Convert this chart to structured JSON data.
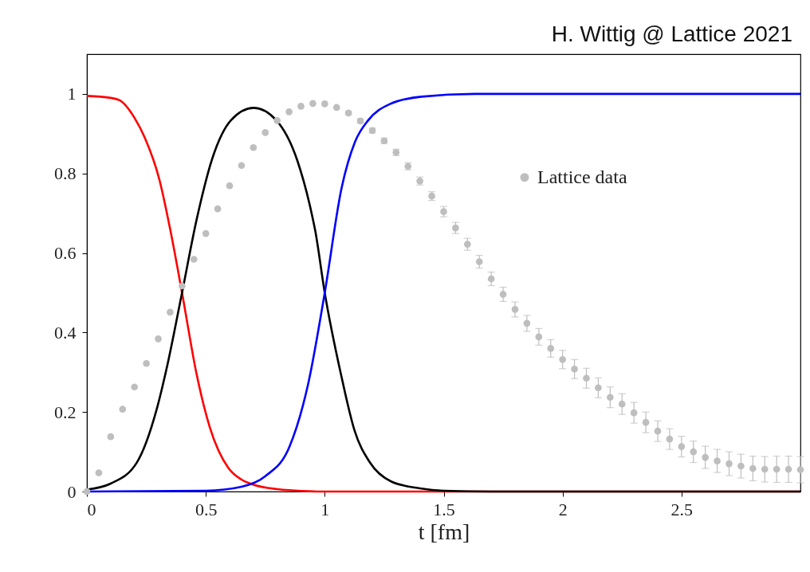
{
  "chart_data": {
    "type": "line",
    "xlabel": "t [fm]",
    "annotations": [
      "H. Wittig @ Lattice 2021"
    ],
    "xlim": [
      0,
      3
    ],
    "xticks": [
      0,
      0.5,
      1,
      1.5,
      2,
      2.5
    ],
    "ylim": [
      0,
      1.1
    ],
    "yticks": [
      0,
      0.2,
      0.4,
      0.6,
      0.8,
      1
    ],
    "grid": false,
    "legend": "top right",
    "line_style": "solid",
    "series": [
      {
        "color": "#ff0000",
        "x": [
          0,
          0.1,
          0.138,
          0.2,
          0.244,
          0.305,
          0.35,
          0.4,
          0.461,
          0.517,
          0.595,
          0.65,
          0.696,
          0.8,
          0.863,
          1.0,
          3.0
        ],
        "values": [
          0.995,
          0.99,
          0.984,
          0.94,
          0.889,
          0.784,
          0.66,
          0.5,
          0.296,
          0.161,
          0.059,
          0.03,
          0.018,
          0.006,
          0.003,
          0,
          0
        ]
      },
      {
        "color": "#000000",
        "x": [
          0,
          0.1,
          0.21,
          0.294,
          0.338,
          0.4,
          0.461,
          0.528,
          0.606,
          0.701,
          0.796,
          0.885,
          0.941,
          0.96,
          1.0,
          1.07,
          1.125,
          1.19,
          1.28,
          1.4,
          1.5,
          1.7,
          3.0
        ],
        "values": [
          0.005,
          0.02,
          0.073,
          0.208,
          0.317,
          0.5,
          0.683,
          0.839,
          0.934,
          0.965,
          0.934,
          0.832,
          0.71,
          0.656,
          0.5,
          0.29,
          0.154,
          0.073,
          0.025,
          0.008,
          0.002,
          0,
          0
        ]
      },
      {
        "color": "#0000ff",
        "x": [
          0,
          0.5,
          0.65,
          0.751,
          0.852,
          0.93,
          1.0,
          1.071,
          1.127,
          1.183,
          1.272,
          1.406,
          1.63,
          3.0
        ],
        "values": [
          0,
          0.002,
          0.012,
          0.039,
          0.113,
          0.27,
          0.5,
          0.764,
          0.879,
          0.934,
          0.974,
          0.993,
          1.0,
          1.0
        ]
      },
      {
        "type": "scatter",
        "name": "Lattice data",
        "color": "#bebebe",
        "marker": "circle",
        "x": [
          0,
          0.05,
          0.1,
          0.15,
          0.2,
          0.25,
          0.3,
          0.35,
          0.4,
          0.45,
          0.5,
          0.55,
          0.6,
          0.65,
          0.7,
          0.75,
          0.8,
          0.85,
          0.9,
          0.95,
          1.0,
          1.05,
          1.1,
          1.15,
          1.2,
          1.25,
          1.3,
          1.35,
          1.4,
          1.45,
          1.5,
          1.55,
          1.6,
          1.65,
          1.7,
          1.75,
          1.8,
          1.85,
          1.9,
          1.95,
          2.0,
          2.05,
          2.1,
          2.15,
          2.2,
          2.25,
          2.3,
          2.35,
          2.4,
          2.45,
          2.5,
          2.55,
          2.6,
          2.65,
          2.7,
          2.75,
          2.8,
          2.85,
          2.9,
          2.95,
          3.0
        ],
        "values": [
          0,
          0.047,
          0.138,
          0.207,
          0.263,
          0.322,
          0.384,
          0.451,
          0.517,
          0.584,
          0.649,
          0.711,
          0.769,
          0.82,
          0.865,
          0.903,
          0.933,
          0.955,
          0.969,
          0.976,
          0.975,
          0.966,
          0.952,
          0.932,
          0.908,
          0.882,
          0.853,
          0.818,
          0.781,
          0.743,
          0.704,
          0.663,
          0.622,
          0.578,
          0.535,
          0.496,
          0.458,
          0.423,
          0.389,
          0.36,
          0.332,
          0.308,
          0.285,
          0.261,
          0.237,
          0.22,
          0.198,
          0.174,
          0.152,
          0.132,
          0.113,
          0.1,
          0.086,
          0.077,
          0.07,
          0.064,
          0.058,
          0.056,
          0.056,
          0.056,
          0.055
        ],
        "errors": [
          null,
          null,
          null,
          null,
          null,
          null,
          null,
          null,
          null,
          null,
          null,
          null,
          null,
          null,
          null,
          null,
          null,
          null,
          null,
          null,
          null,
          null,
          0.004,
          0.005,
          0.006,
          0.007,
          0.008,
          0.009,
          0.01,
          0.011,
          0.013,
          0.014,
          0.015,
          0.016,
          0.017,
          0.018,
          0.019,
          0.02,
          0.021,
          0.022,
          0.023,
          0.024,
          0.025,
          0.025,
          0.026,
          0.026,
          0.026,
          0.026,
          0.026,
          0.026,
          0.026,
          0.027,
          0.028,
          0.029,
          0.03,
          0.03,
          0.031,
          0.032,
          0.033,
          0.033,
          0.033
        ]
      }
    ]
  }
}
